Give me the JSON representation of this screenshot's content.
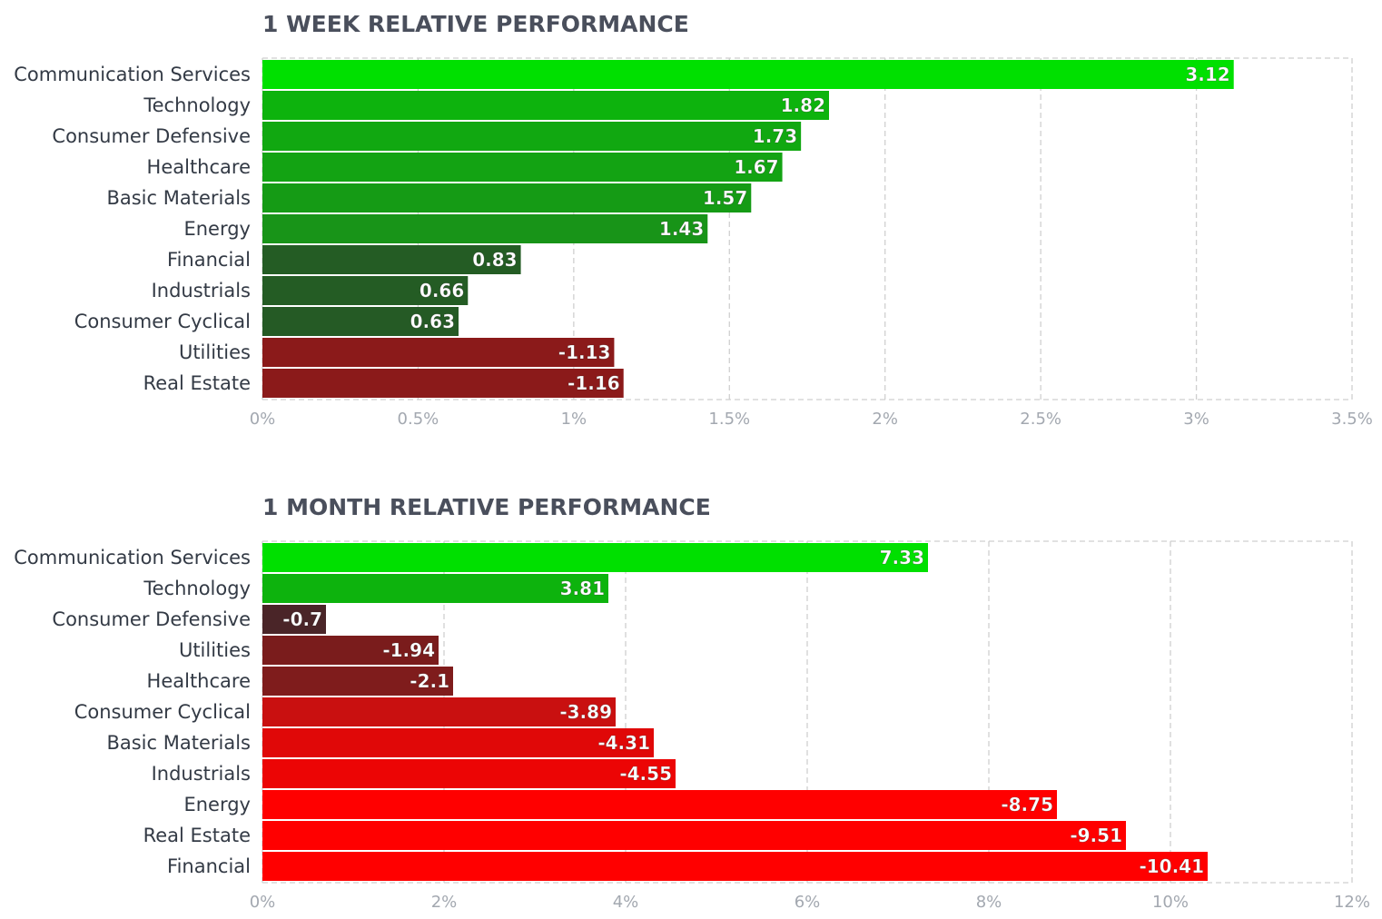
{
  "chart_data": [
    {
      "type": "bar",
      "orientation": "horizontal",
      "title": "1 WEEK RELATIVE PERFORMANCE",
      "categories": [
        "Communication Services",
        "Technology",
        "Consumer Defensive",
        "Healthcare",
        "Basic Materials",
        "Energy",
        "Financial",
        "Industrials",
        "Consumer Cyclical",
        "Utilities",
        "Real Estate"
      ],
      "values": [
        3.12,
        1.82,
        1.73,
        1.67,
        1.57,
        1.43,
        0.83,
        0.66,
        0.63,
        -1.13,
        -1.16
      ],
      "data_labels": [
        "3.12",
        "1.82",
        "1.73",
        "1.67",
        "1.57",
        "1.43",
        "0.83",
        "0.66",
        "0.63",
        "-1.13",
        "-1.16"
      ],
      "colors": [
        "#00e000",
        "#0db30d",
        "#11a811",
        "#13a313",
        "#159b15",
        "#189418",
        "#245c24",
        "#245c24",
        "#255a25",
        "#8b1a1a",
        "#8b1a1a"
      ],
      "bar_magnitude": "absolute",
      "xlim": [
        0,
        3.5
      ],
      "xticks": [
        0,
        0.5,
        1,
        1.5,
        2,
        2.5,
        3,
        3.5
      ],
      "xtick_labels": [
        "0%",
        "0.5%",
        "1%",
        "1.5%",
        "2%",
        "2.5%",
        "3%",
        "3.5%"
      ],
      "grid": true
    },
    {
      "type": "bar",
      "orientation": "horizontal",
      "title": "1 MONTH RELATIVE PERFORMANCE",
      "categories": [
        "Communication Services",
        "Technology",
        "Consumer Defensive",
        "Utilities",
        "Healthcare",
        "Consumer Cyclical",
        "Basic Materials",
        "Industrials",
        "Energy",
        "Real Estate",
        "Financial"
      ],
      "values": [
        7.33,
        3.81,
        -0.7,
        -1.94,
        -2.1,
        -3.89,
        -4.31,
        -4.55,
        -8.75,
        -9.51,
        -10.41
      ],
      "data_labels": [
        "7.33",
        "3.81",
        "-0.7",
        "-1.94",
        "-2.1",
        "-3.89",
        "-4.31",
        "-4.55",
        "-8.75",
        "-9.51",
        "-10.41"
      ],
      "colors": [
        "#00e000",
        "#0db30d",
        "#4a2528",
        "#7a1c1c",
        "#7f1c1c",
        "#c91010",
        "#e00808",
        "#ec0505",
        "#ff0000",
        "#ff0000",
        "#ff0000"
      ],
      "bar_magnitude": "absolute",
      "xlim": [
        0,
        12
      ],
      "xticks": [
        0,
        2,
        4,
        6,
        8,
        10,
        12
      ],
      "xtick_labels": [
        "0%",
        "2%",
        "4%",
        "6%",
        "8%",
        "10%",
        "12%"
      ],
      "grid": true
    }
  ]
}
